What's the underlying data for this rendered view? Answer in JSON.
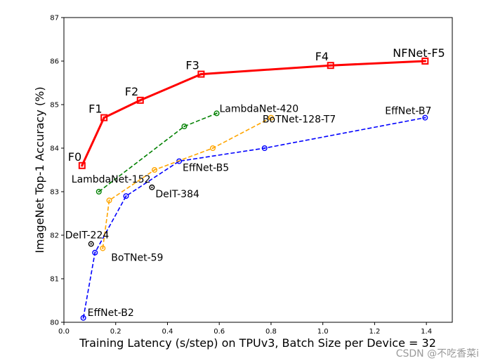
{
  "chart_data": {
    "type": "line",
    "xlabel": "Training Latency (s/step) on TPUv3, Batch Size per Device = 32",
    "ylabel": "ImageNet Top-1 Accuracy (%)",
    "xlim": [
      0.0,
      1.5
    ],
    "ylim": [
      80,
      87
    ],
    "xticks": [
      "0.0",
      "0.2",
      "0.4",
      "0.6",
      "0.8",
      "1.0",
      "1.2",
      "1.4"
    ],
    "yticks": [
      "80",
      "81",
      "82",
      "83",
      "84",
      "85",
      "86",
      "87"
    ],
    "grid": false,
    "legend": "none",
    "series": [
      {
        "color": "#ff0000",
        "style": "solid",
        "marker": "square",
        "points": [
          {
            "x": 0.07,
            "y": 83.6,
            "label": "F0"
          },
          {
            "x": 0.155,
            "y": 84.7,
            "label": "F1"
          },
          {
            "x": 0.295,
            "y": 85.1,
            "label": "F2"
          },
          {
            "x": 0.53,
            "y": 85.7,
            "label": "F3"
          },
          {
            "x": 1.03,
            "y": 85.9,
            "label": "F4"
          },
          {
            "x": 1.395,
            "y": 86.0,
            "label": "NFNet-F5"
          }
        ]
      },
      {
        "color": "#0000ff",
        "style": "dashed",
        "marker": "circle",
        "points": [
          {
            "x": 0.075,
            "y": 80.1,
            "label": "EffNet-B2"
          },
          {
            "x": 0.12,
            "y": 81.6,
            "label": ""
          },
          {
            "x": 0.24,
            "y": 82.9,
            "label": ""
          },
          {
            "x": 0.445,
            "y": 83.7,
            "label": "EffNet-B5"
          },
          {
            "x": 0.775,
            "y": 84.0,
            "label": ""
          },
          {
            "x": 1.395,
            "y": 84.7,
            "label": "EffNet-B7"
          }
        ]
      },
      {
        "color": "#ffa500",
        "style": "dashed",
        "marker": "circle",
        "points": [
          {
            "x": 0.15,
            "y": 81.7,
            "label": "BoTNet-59"
          },
          {
            "x": 0.175,
            "y": 82.8,
            "label": ""
          },
          {
            "x": 0.35,
            "y": 83.5,
            "label": ""
          },
          {
            "x": 0.575,
            "y": 84.0,
            "label": ""
          },
          {
            "x": 0.8,
            "y": 84.7,
            "label": "BoTNet-128-T7"
          }
        ]
      },
      {
        "color": "#008000",
        "style": "dashed",
        "marker": "circle",
        "points": [
          {
            "x": 0.135,
            "y": 83.0,
            "label": "LambdaNet-152"
          },
          {
            "x": 0.465,
            "y": 84.5,
            "label": ""
          },
          {
            "x": 0.59,
            "y": 84.8,
            "label": "LambdaNet-420"
          }
        ]
      },
      {
        "color": "#000000",
        "style": "none",
        "marker": "circle",
        "points": [
          {
            "x": 0.105,
            "y": 81.8,
            "label": "DeIT-224"
          },
          {
            "x": 0.34,
            "y": 83.1,
            "label": "DeIT-384"
          }
        ]
      }
    ]
  },
  "watermark": "CSDN @不吃香菜i"
}
